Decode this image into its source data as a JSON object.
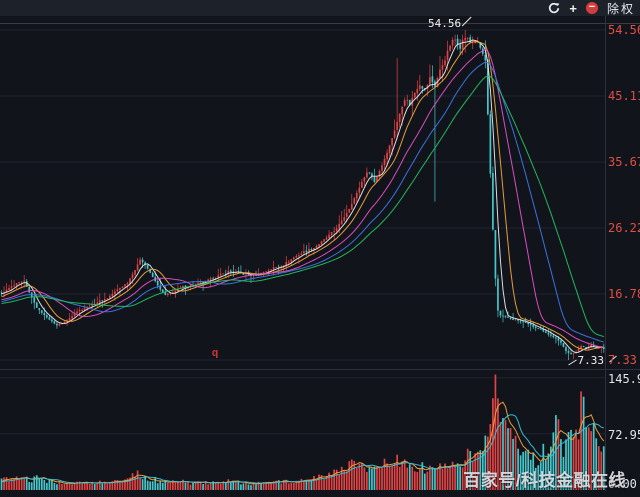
{
  "toolbar": {
    "refresh_icon": "refresh",
    "zoom_in_label": "+",
    "zoom_out_label": "−",
    "exrights_label": "除权"
  },
  "watermark": {
    "text": "百家号/科技金融在线"
  },
  "chart_data": {
    "type": "candlestick+volume",
    "panes": [
      "price",
      "volume"
    ],
    "grid": "horizontal-only",
    "legend": "none",
    "price_axis": {
      "ticks": [
        "54.56",
        "45.11",
        "35.67",
        "26.22",
        "16.78",
        "7.33"
      ],
      "color": "#de4f44",
      "position": "right"
    },
    "volume_axis": {
      "ticks": [
        "145.9",
        "72.95",
        "0.00"
      ],
      "color": "#e2e6ec",
      "position": "right"
    },
    "annotations": {
      "high_label": "54.56",
      "low_label": "7.33",
      "event_marker": "q",
      "event_marker_index": 85
    },
    "high": {
      "index": 184,
      "value": 54.56
    },
    "low": {
      "index": 225,
      "value": 7.33
    },
    "num_bars": 240,
    "price_range": [
      7.33,
      54.56
    ],
    "volume_range": [
      0,
      150
    ],
    "close_anchors": [
      [
        0,
        16.8
      ],
      [
        3,
        17.6
      ],
      [
        6,
        18.2
      ],
      [
        9,
        18.6
      ],
      [
        11,
        17.0
      ],
      [
        14,
        14.8
      ],
      [
        18,
        13.4
      ],
      [
        22,
        12.3
      ],
      [
        26,
        13.0
      ],
      [
        30,
        14.3
      ],
      [
        34,
        14.9
      ],
      [
        38,
        15.6
      ],
      [
        42,
        16.2
      ],
      [
        46,
        17.4
      ],
      [
        50,
        18.4
      ],
      [
        53,
        20.2
      ],
      [
        55,
        21.8
      ],
      [
        57,
        21.0
      ],
      [
        60,
        19.2
      ],
      [
        63,
        17.4
      ],
      [
        65,
        16.6
      ],
      [
        68,
        17.0
      ],
      [
        72,
        17.8
      ],
      [
        76,
        18.1
      ],
      [
        80,
        18.4
      ],
      [
        85,
        19.2
      ],
      [
        90,
        20.0
      ],
      [
        95,
        19.7
      ],
      [
        100,
        19.4
      ],
      [
        104,
        19.9
      ],
      [
        108,
        20.5
      ],
      [
        112,
        21.0
      ],
      [
        116,
        22.0
      ],
      [
        120,
        22.8
      ],
      [
        124,
        23.4
      ],
      [
        128,
        24.5
      ],
      [
        132,
        25.8
      ],
      [
        135,
        27.2
      ],
      [
        138,
        29.0
      ],
      [
        141,
        31.2
      ],
      [
        144,
        33.6
      ],
      [
        146,
        34.4
      ],
      [
        148,
        32.8
      ],
      [
        151,
        35.2
      ],
      [
        154,
        38.0
      ],
      [
        156,
        40.2
      ],
      [
        158,
        42.6
      ],
      [
        160,
        44.8
      ],
      [
        162,
        44.0
      ],
      [
        164,
        45.6
      ],
      [
        166,
        47.0
      ],
      [
        168,
        45.8
      ],
      [
        170,
        47.6
      ],
      [
        172,
        46.6
      ],
      [
        174,
        48.8
      ],
      [
        176,
        50.4
      ],
      [
        178,
        52.4
      ],
      [
        180,
        53.2
      ],
      [
        182,
        52.4
      ],
      [
        184,
        53.6
      ],
      [
        186,
        52.8
      ],
      [
        188,
        53.0
      ],
      [
        190,
        52.0
      ],
      [
        192,
        50.2
      ],
      [
        193,
        42.5
      ],
      [
        194,
        34.0
      ],
      [
        195,
        26.0
      ],
      [
        196,
        19.0
      ],
      [
        197,
        14.4
      ],
      [
        198,
        13.7
      ],
      [
        200,
        13.5
      ],
      [
        202,
        13.2
      ],
      [
        205,
        13.0
      ],
      [
        208,
        12.6
      ],
      [
        211,
        12.1
      ],
      [
        214,
        11.7
      ],
      [
        217,
        11.0
      ],
      [
        220,
        10.4
      ],
      [
        222,
        9.8
      ],
      [
        224,
        8.6
      ],
      [
        226,
        8.1
      ],
      [
        228,
        8.5
      ],
      [
        230,
        9.3
      ],
      [
        232,
        9.0
      ],
      [
        234,
        9.5
      ],
      [
        236,
        9.0
      ],
      [
        238,
        9.2
      ],
      [
        239,
        8.9
      ]
    ],
    "wick_events": [
      {
        "index": 157,
        "high": 50.5
      },
      {
        "index": 172,
        "low": 30.0
      }
    ],
    "volume_anchors": [
      [
        0,
        12
      ],
      [
        4,
        16
      ],
      [
        8,
        18
      ],
      [
        11,
        13
      ],
      [
        14,
        15
      ],
      [
        18,
        12
      ],
      [
        22,
        10
      ],
      [
        26,
        9
      ],
      [
        30,
        10
      ],
      [
        35,
        9
      ],
      [
        40,
        10
      ],
      [
        45,
        12
      ],
      [
        50,
        15
      ],
      [
        54,
        20
      ],
      [
        57,
        15
      ],
      [
        60,
        13
      ],
      [
        64,
        11
      ],
      [
        68,
        10
      ],
      [
        72,
        11
      ],
      [
        76,
        9
      ],
      [
        80,
        9
      ],
      [
        85,
        10
      ],
      [
        90,
        12
      ],
      [
        95,
        9
      ],
      [
        100,
        8
      ],
      [
        105,
        9
      ],
      [
        110,
        10
      ],
      [
        115,
        12
      ],
      [
        119,
        14
      ],
      [
        124,
        16
      ],
      [
        128,
        19
      ],
      [
        132,
        24
      ],
      [
        135,
        29
      ],
      [
        138,
        33
      ],
      [
        141,
        30
      ],
      [
        144,
        27
      ],
      [
        147,
        24
      ],
      [
        150,
        29
      ],
      [
        153,
        34
      ],
      [
        156,
        38
      ],
      [
        159,
        34
      ],
      [
        162,
        30
      ],
      [
        165,
        28
      ],
      [
        168,
        29
      ],
      [
        171,
        33
      ],
      [
        174,
        30
      ],
      [
        177,
        35
      ],
      [
        180,
        38
      ],
      [
        184,
        41
      ],
      [
        188,
        46
      ],
      [
        191,
        56
      ],
      [
        193,
        82
      ],
      [
        195,
        115
      ],
      [
        196,
        150
      ],
      [
        197,
        96
      ],
      [
        198,
        72
      ],
      [
        200,
        80
      ],
      [
        202,
        90
      ],
      [
        204,
        74
      ],
      [
        206,
        58
      ],
      [
        208,
        48
      ],
      [
        210,
        42
      ],
      [
        212,
        38
      ],
      [
        214,
        46
      ],
      [
        216,
        52
      ],
      [
        218,
        60
      ],
      [
        221,
        92
      ],
      [
        223,
        58
      ],
      [
        225,
        62
      ],
      [
        227,
        72
      ],
      [
        229,
        58
      ],
      [
        230,
        128
      ],
      [
        232,
        86
      ],
      [
        234,
        66
      ],
      [
        236,
        76
      ],
      [
        238,
        52
      ],
      [
        239,
        46
      ]
    ],
    "volume_spikes": [
      [
        196,
        150
      ],
      [
        221,
        92
      ],
      [
        230,
        128
      ]
    ],
    "volume_red_overrides": [
      193,
      194,
      195,
      196,
      197,
      198,
      200,
      202,
      221,
      230
    ],
    "ma": {
      "ma5": "#e8e8e8",
      "ma10": "#f2a33c",
      "ma20": "#e251c8",
      "ma30": "#3c78e8",
      "ma40": "#22c160"
    },
    "volume_ma": {
      "ma5": "#f2a33c",
      "ma10": "#38c4d8"
    },
    "colors": {
      "up": "#e14444",
      "down": "#45c8cb",
      "background": "#12141b",
      "grid": "#1f2430",
      "axis_line": "#2c3140",
      "divider": "#2c3140",
      "top_line": "#373c47"
    }
  }
}
